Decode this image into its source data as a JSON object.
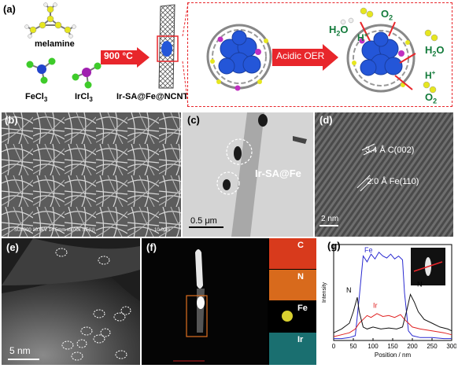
{
  "panel_a": {
    "label": "(a)",
    "melamine": "melamine",
    "fecl3": "FeCl",
    "fecl3_sub": "3",
    "ircl3": "IrCl",
    "ircl3_sub": "3",
    "temp_arrow": "900 °C",
    "product": "Ir-SA@Fe@NCNT",
    "reaction_arrow": "Acidic OER",
    "h2o_left": "H",
    "h2o_left_sub": "2",
    "h2o_left_tail": "O",
    "h_plus_left": "H",
    "h_plus_left_sup": "+",
    "o2_top": "O",
    "o2_top_sub": "2",
    "h2o_right": "H",
    "h2o_right_sub": "2",
    "h2o_right_tail": "O",
    "h_plus_right": "H",
    "h_plus_right_sup": "+",
    "o2_bottom": "O",
    "o2_bottom_sub": "2"
  },
  "panel_b": {
    "label": "(b)",
    "scale_text": "10.0μm",
    "info_text": "SU8000 10.0kV 14.5mm x5.00k SE(U)"
  },
  "panel_c": {
    "label": "(c)",
    "sample": "Ir-SA@Fe",
    "scale_text": "0.5 μm"
  },
  "panel_d": {
    "label": "(d)",
    "fringe1": "3.4 Å  C(002)",
    "fringe2": "2.0 Å  Fe(110)",
    "scale_text": "2 nm"
  },
  "panel_e": {
    "label": "(e)",
    "scale_text": "5 nm"
  },
  "panel_f": {
    "label": "(f)",
    "maps": [
      "C",
      "N",
      "Fe",
      "Ir"
    ]
  },
  "panel_g": {
    "label": "(g)"
  },
  "colors": {
    "arrow_red": "#e8262b",
    "sphere_blue": "#2456d8",
    "map_c": "#d83a1c",
    "map_n": "#d86a1c",
    "map_fe": "#d8d030",
    "map_ir": "#2aa0a0"
  },
  "chart_data": {
    "type": "line",
    "xlabel": "Position / nm",
    "ylabel": "Intensity",
    "xlim": [
      0,
      300
    ],
    "xticks": [
      0,
      50,
      100,
      150,
      200,
      250,
      300
    ],
    "series": [
      {
        "name": "Fe",
        "color": "#2a2ad0",
        "x": [
          0,
          20,
          40,
          55,
          65,
          75,
          85,
          95,
          105,
          115,
          125,
          135,
          145,
          155,
          165,
          175,
          180,
          190,
          200,
          220,
          250,
          280,
          300
        ],
        "y": [
          2,
          2,
          3,
          5,
          45,
          88,
          82,
          90,
          85,
          92,
          88,
          86,
          90,
          85,
          88,
          84,
          50,
          10,
          5,
          3,
          3,
          2,
          2
        ]
      },
      {
        "name": "Ir",
        "color": "#e02020",
        "x": [
          0,
          20,
          40,
          55,
          65,
          75,
          85,
          95,
          110,
          125,
          140,
          155,
          170,
          180,
          190,
          200,
          220,
          250,
          280,
          300
        ],
        "y": [
          4,
          6,
          8,
          12,
          18,
          22,
          26,
          24,
          28,
          25,
          26,
          24,
          27,
          22,
          18,
          14,
          12,
          10,
          8,
          6
        ]
      },
      {
        "name": "N",
        "color": "#111111",
        "x": [
          0,
          20,
          40,
          50,
          60,
          65,
          75,
          85,
          100,
          120,
          140,
          160,
          175,
          185,
          195,
          205,
          215,
          230,
          250,
          270,
          290,
          300
        ],
        "y": [
          8,
          12,
          18,
          30,
          45,
          30,
          14,
          12,
          14,
          12,
          13,
          12,
          14,
          30,
          48,
          40,
          30,
          22,
          18,
          14,
          12,
          10
        ]
      }
    ]
  }
}
